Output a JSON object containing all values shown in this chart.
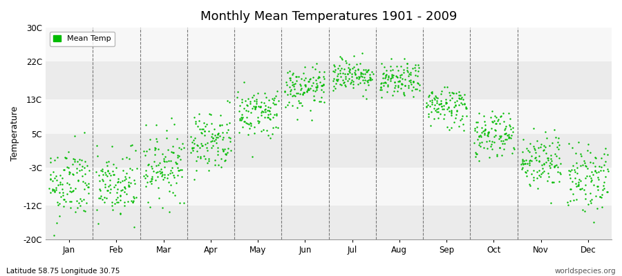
{
  "title": "Monthly Mean Temperatures 1901 - 2009",
  "ylabel": "Temperature",
  "xlabel_bottom_left": "Latitude 58.75 Longitude 30.75",
  "xlabel_bottom_right": "worldspecies.org",
  "legend_label": "Mean Temp",
  "dot_color": "#00bb00",
  "background_color": "#ffffff",
  "plot_bg_color": "#ffffff",
  "band_color_light": "#ebebeb",
  "band_color_white": "#f7f7f7",
  "ylim": [
    -20,
    30
  ],
  "ytick_labels": [
    "-20C",
    "-12C",
    "-3C",
    "5C",
    "13C",
    "22C",
    "30C"
  ],
  "ytick_values": [
    -20,
    -12,
    -3,
    5,
    13,
    22,
    30
  ],
  "months": [
    "Jan",
    "Feb",
    "Mar",
    "Apr",
    "May",
    "Jun",
    "Jul",
    "Aug",
    "Sep",
    "Oct",
    "Nov",
    "Dec"
  ],
  "month_centers": [
    0.5,
    1.5,
    2.5,
    3.5,
    4.5,
    5.5,
    6.5,
    7.5,
    8.5,
    9.5,
    10.5,
    11.5
  ],
  "month_boundaries": [
    0,
    1,
    2,
    3,
    4,
    5,
    6,
    7,
    8,
    9,
    10,
    11,
    12
  ],
  "dot_size": 3,
  "monthly_mean_temps": [
    -7.0,
    -7.5,
    -2.5,
    3.5,
    10.0,
    15.5,
    19.0,
    17.5,
    11.5,
    5.0,
    -1.5,
    -5.5
  ],
  "monthly_std_temps": [
    4.5,
    4.5,
    4.0,
    3.5,
    3.0,
    2.5,
    2.0,
    2.0,
    2.5,
    3.0,
    3.5,
    4.0
  ],
  "n_years": 109,
  "xlim": [
    0,
    12
  ]
}
